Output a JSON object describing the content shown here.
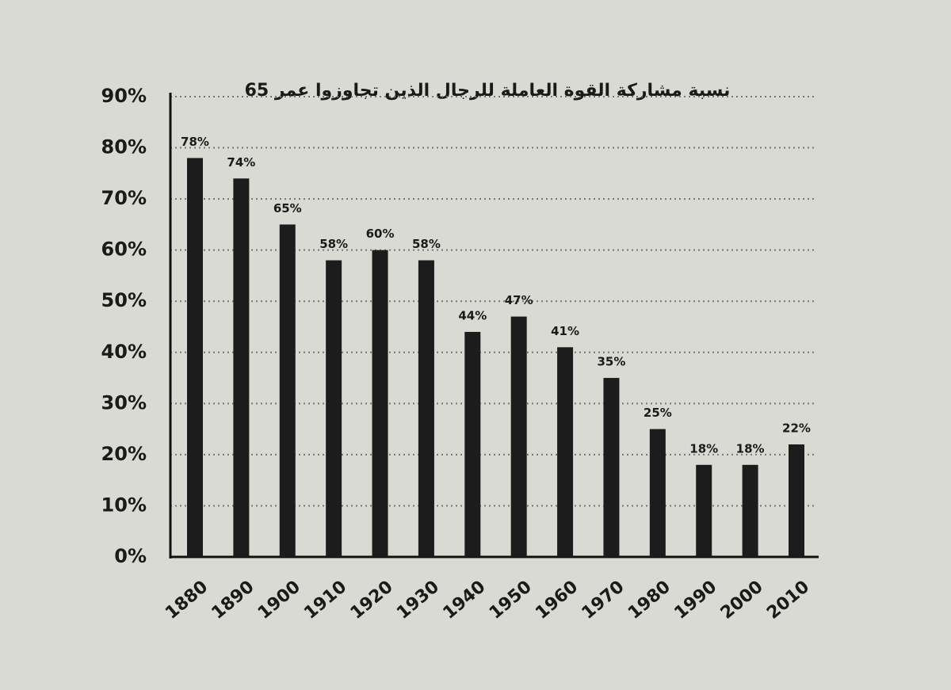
{
  "chart_data": {
    "type": "bar",
    "title": "نسبة مشاركة القوة العاملة للرجال الذين تجاوزوا عمر 65",
    "categories": [
      "1880",
      "1890",
      "1900",
      "1910",
      "1920",
      "1930",
      "1940",
      "1950",
      "1960",
      "1970",
      "1980",
      "1990",
      "2000",
      "2010"
    ],
    "values": [
      78,
      74,
      65,
      58,
      60,
      58,
      44,
      47,
      41,
      35,
      25,
      18,
      18,
      22
    ],
    "value_labels": [
      "78%",
      "74%",
      "65%",
      "58%",
      "60%",
      "58%",
      "44%",
      "47%",
      "41%",
      "35%",
      "25%",
      "18%",
      "18%",
      "22%"
    ],
    "color": "#1c1c1c",
    "ylim": [
      0,
      90
    ],
    "yticks": [
      {
        "value": 0,
        "label": "0%"
      },
      {
        "value": 10,
        "label": "10%"
      },
      {
        "value": 20,
        "label": "20%"
      },
      {
        "value": 30,
        "label": "30%"
      },
      {
        "value": 40,
        "label": "40%"
      },
      {
        "value": 50,
        "label": "50%"
      },
      {
        "value": 60,
        "label": "60%"
      },
      {
        "value": 70,
        "label": "70%"
      },
      {
        "value": 80,
        "label": "80%"
      },
      {
        "value": 90,
        "label": "90%"
      }
    ],
    "grid": true
  }
}
